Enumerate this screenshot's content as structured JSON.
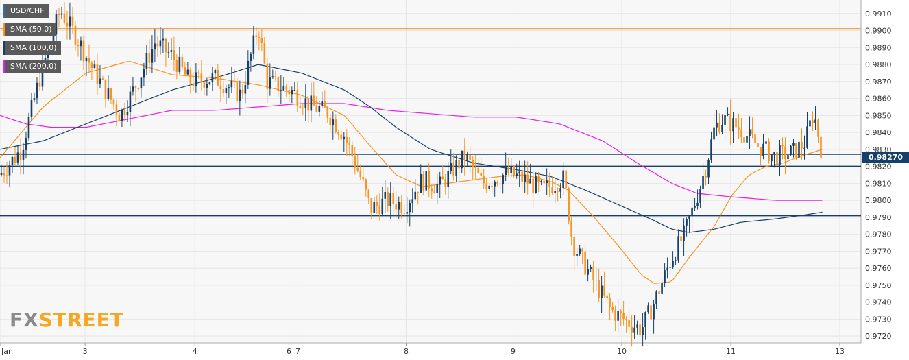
{
  "chart_data": {
    "type": "candlestick",
    "symbol": "USD/CHF",
    "x_tick_labels": [
      "Jan",
      "3",
      "4",
      "6",
      "7",
      "8",
      "9",
      "10",
      "11",
      "13"
    ],
    "y_tick_labels": [
      "0.9720",
      "0.9730",
      "0.9740",
      "0.9750",
      "0.9760",
      "0.9770",
      "0.9780",
      "0.9790",
      "0.9800",
      "0.9810",
      "0.9820",
      "0.9830",
      "0.9840",
      "0.9850",
      "0.9860",
      "0.9870",
      "0.9880",
      "0.9890",
      "0.9900",
      "0.9910"
    ],
    "ylim": [
      0.9716,
      0.9918
    ],
    "last_price": "0.98270",
    "horizontal_levels": [
      {
        "value": 0.9901,
        "color": "#f7931e"
      },
      {
        "value": 0.982,
        "color": "#16406b"
      },
      {
        "value": 0.9791,
        "color": "#16406b"
      },
      {
        "value": 0.9827,
        "color": "#16406b"
      }
    ],
    "legend": [
      {
        "label": "USD/CHF",
        "color": "#2a6fb5"
      },
      {
        "label": "SMA (50,0)",
        "color": "#f7931e"
      },
      {
        "label": "SMA (100,0)",
        "color": "#16406b"
      },
      {
        "label": "SMA (200,0)",
        "color": "#e91ee9"
      }
    ],
    "price_anchors": [
      [
        0,
        0.9815
      ],
      [
        0.025,
        0.983
      ],
      [
        0.045,
        0.987
      ],
      [
        0.07,
        0.9912
      ],
      [
        0.09,
        0.9895
      ],
      [
        0.11,
        0.9875
      ],
      [
        0.14,
        0.985
      ],
      [
        0.16,
        0.987
      ],
      [
        0.18,
        0.9893
      ],
      [
        0.2,
        0.9885
      ],
      [
        0.22,
        0.987
      ],
      [
        0.25,
        0.9872
      ],
      [
        0.28,
        0.9862
      ],
      [
        0.3,
        0.9903
      ],
      [
        0.31,
        0.987
      ],
      [
        0.34,
        0.9864
      ],
      [
        0.36,
        0.9856
      ],
      [
        0.38,
        0.9852
      ],
      [
        0.4,
        0.9838
      ],
      [
        0.42,
        0.9812
      ],
      [
        0.43,
        0.9795
      ],
      [
        0.45,
        0.98
      ],
      [
        0.47,
        0.9797
      ],
      [
        0.49,
        0.9812
      ],
      [
        0.51,
        0.9808
      ],
      [
        0.54,
        0.9826
      ],
      [
        0.56,
        0.981
      ],
      [
        0.59,
        0.9816
      ],
      [
        0.61,
        0.9812
      ],
      [
        0.63,
        0.9806
      ],
      [
        0.655,
        0.9813
      ],
      [
        0.665,
        0.9775
      ],
      [
        0.67,
        0.977
      ],
      [
        0.69,
        0.9752
      ],
      [
        0.71,
        0.9735
      ],
      [
        0.73,
        0.9728
      ],
      [
        0.745,
        0.9724
      ],
      [
        0.76,
        0.974
      ],
      [
        0.78,
        0.9766
      ],
      [
        0.795,
        0.978
      ],
      [
        0.81,
        0.9803
      ],
      [
        0.82,
        0.982
      ],
      [
        0.83,
        0.9843
      ],
      [
        0.84,
        0.9848
      ],
      [
        0.86,
        0.9842
      ],
      [
        0.88,
        0.9832
      ],
      [
        0.9,
        0.9826
      ],
      [
        0.92,
        0.9828
      ],
      [
        0.935,
        0.9834
      ],
      [
        0.945,
        0.9852
      ],
      [
        0.955,
        0.9827
      ]
    ],
    "sma50_anchors": [
      [
        0,
        0.9825
      ],
      [
        0.05,
        0.9855
      ],
      [
        0.1,
        0.9875
      ],
      [
        0.15,
        0.9882
      ],
      [
        0.2,
        0.9874
      ],
      [
        0.25,
        0.9872
      ],
      [
        0.3,
        0.9868
      ],
      [
        0.35,
        0.9862
      ],
      [
        0.4,
        0.985
      ],
      [
        0.43,
        0.9832
      ],
      [
        0.46,
        0.9815
      ],
      [
        0.49,
        0.9808
      ],
      [
        0.52,
        0.981
      ],
      [
        0.55,
        0.9812
      ],
      [
        0.58,
        0.9814
      ],
      [
        0.61,
        0.9815
      ],
      [
        0.64,
        0.9811
      ],
      [
        0.66,
        0.9806
      ],
      [
        0.69,
        0.979
      ],
      [
        0.72,
        0.9772
      ],
      [
        0.745,
        0.9756
      ],
      [
        0.76,
        0.9751
      ],
      [
        0.78,
        0.9752
      ],
      [
        0.8,
        0.9766
      ],
      [
        0.83,
        0.9785
      ],
      [
        0.85,
        0.9803
      ],
      [
        0.87,
        0.9815
      ],
      [
        0.89,
        0.982
      ],
      [
        0.91,
        0.9822
      ],
      [
        0.93,
        0.9826
      ],
      [
        0.955,
        0.983
      ]
    ],
    "sma100_anchors": [
      [
        0,
        0.983
      ],
      [
        0.05,
        0.9835
      ],
      [
        0.1,
        0.9845
      ],
      [
        0.15,
        0.9855
      ],
      [
        0.2,
        0.9865
      ],
      [
        0.25,
        0.9872
      ],
      [
        0.3,
        0.988
      ],
      [
        0.35,
        0.9875
      ],
      [
        0.4,
        0.9865
      ],
      [
        0.43,
        0.9855
      ],
      [
        0.46,
        0.9843
      ],
      [
        0.5,
        0.983
      ],
      [
        0.55,
        0.9822
      ],
      [
        0.6,
        0.9818
      ],
      [
        0.64,
        0.9814
      ],
      [
        0.68,
        0.9806
      ],
      [
        0.72,
        0.9797
      ],
      [
        0.76,
        0.9788
      ],
      [
        0.78,
        0.9783
      ],
      [
        0.8,
        0.9781
      ],
      [
        0.83,
        0.9783
      ],
      [
        0.86,
        0.9787
      ],
      [
        0.9,
        0.9789
      ],
      [
        0.93,
        0.9791
      ],
      [
        0.955,
        0.9793
      ]
    ],
    "sma200_anchors": [
      [
        0,
        0.985
      ],
      [
        0.03,
        0.9845
      ],
      [
        0.06,
        0.9843
      ],
      [
        0.1,
        0.9843
      ],
      [
        0.15,
        0.9848
      ],
      [
        0.2,
        0.9853
      ],
      [
        0.25,
        0.9853
      ],
      [
        0.3,
        0.9855
      ],
      [
        0.35,
        0.9857
      ],
      [
        0.4,
        0.9857
      ],
      [
        0.45,
        0.9853
      ],
      [
        0.5,
        0.9851
      ],
      [
        0.55,
        0.9849
      ],
      [
        0.6,
        0.9849
      ],
      [
        0.65,
        0.9845
      ],
      [
        0.7,
        0.9835
      ],
      [
        0.74,
        0.9822
      ],
      [
        0.78,
        0.981
      ],
      [
        0.81,
        0.9804
      ],
      [
        0.85,
        0.9802
      ],
      [
        0.9,
        0.98
      ],
      [
        0.955,
        0.98
      ]
    ]
  },
  "brand": {
    "fx": "FX",
    "street": "STREET"
  },
  "colors": {
    "bull": "#16406b",
    "bear": "#f7931e",
    "grid": "#e6e6e6",
    "plot_bg": "#f7f7f8"
  }
}
